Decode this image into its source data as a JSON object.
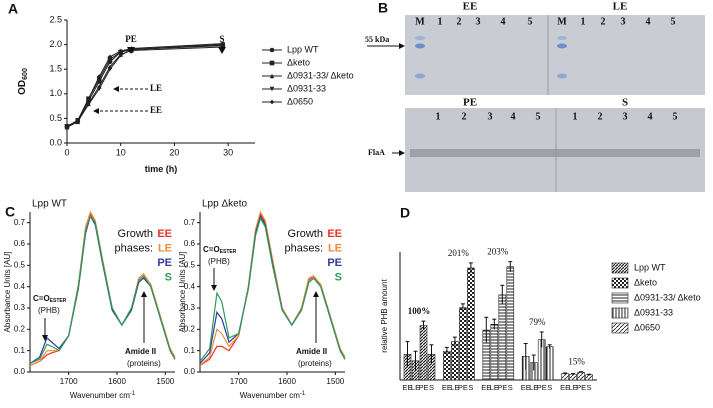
{
  "chart_data": [
    {
      "type": "line",
      "label": "A",
      "xlabel": "time (h)",
      "ylabel": "OD",
      "ylabel_sub": "600",
      "x": [
        0,
        2,
        4,
        6,
        8,
        10,
        12,
        29
      ],
      "series": [
        {
          "name": "Lpp WT",
          "color": "#222222",
          "marker": "circle",
          "values": [
            0.33,
            0.45,
            0.85,
            1.25,
            1.65,
            1.85,
            1.9,
            2.0
          ]
        },
        {
          "name": "Δketo",
          "color": "#222222",
          "marker": "square",
          "values": [
            0.34,
            0.46,
            0.9,
            1.3,
            1.7,
            1.85,
            1.9,
            1.98
          ]
        },
        {
          "name": "Δ0931-33/ Δketo",
          "color": "#222222",
          "marker": "triangle",
          "values": [
            0.32,
            0.43,
            0.8,
            1.15,
            1.55,
            1.8,
            1.88,
            1.95
          ]
        },
        {
          "name": "Δ0931-33",
          "color": "#222222",
          "marker": "triangle-down",
          "values": [
            0.33,
            0.44,
            0.78,
            1.1,
            1.5,
            1.78,
            1.9,
            2.0
          ]
        },
        {
          "name": "Δ0650",
          "color": "#222222",
          "marker": "diamond",
          "values": [
            0.34,
            0.45,
            0.9,
            1.35,
            1.75,
            1.87,
            1.92,
            2.02
          ]
        }
      ],
      "xlim": [
        0,
        35
      ],
      "xticks": [
        0,
        10,
        20,
        30
      ],
      "ylim": [
        0,
        2.5
      ],
      "yticks": [
        {
          "value": 0,
          "label": "0.0"
        },
        0.5,
        {
          "value": 1,
          "label": "1.0"
        },
        1.5,
        {
          "value": 2,
          "label": "2.0"
        },
        2.5
      ],
      "legend": "outside-right",
      "annotations": [
        "PE",
        "S",
        "LE",
        "EE"
      ]
    },
    {
      "type": "line",
      "label": "C",
      "title": "Lpp WT",
      "xlabel": "Wavenumber cm",
      "xlabel_sup": "-1",
      "ylabel": "Absorbance Units [AU]",
      "legend_title": [
        "Growth",
        "phases:"
      ],
      "legend": "top-right",
      "x": [
        1780,
        1760,
        1745,
        1735,
        1720,
        1700,
        1680,
        1665,
        1655,
        1645,
        1630,
        1610,
        1590,
        1570,
        1555,
        1545,
        1530,
        1510,
        1490,
        1480
      ],
      "series": [
        {
          "name": "EE",
          "color": "#e8352b",
          "values": [
            0.03,
            0.05,
            0.08,
            0.09,
            0.1,
            0.17,
            0.4,
            0.67,
            0.74,
            0.7,
            0.52,
            0.3,
            0.22,
            0.3,
            0.43,
            0.45,
            0.4,
            0.25,
            0.1,
            0.06
          ]
        },
        {
          "name": "LE",
          "color": "#f08a3c",
          "values": [
            0.03,
            0.05,
            0.1,
            0.1,
            0.1,
            0.17,
            0.41,
            0.68,
            0.75,
            0.71,
            0.53,
            0.3,
            0.22,
            0.3,
            0.44,
            0.46,
            0.41,
            0.26,
            0.11,
            0.07
          ]
        },
        {
          "name": "PE",
          "color": "#2f3c9e",
          "values": [
            0.04,
            0.07,
            0.16,
            0.14,
            0.11,
            0.17,
            0.39,
            0.65,
            0.73,
            0.69,
            0.51,
            0.29,
            0.22,
            0.29,
            0.42,
            0.44,
            0.4,
            0.25,
            0.1,
            0.06
          ]
        },
        {
          "name": "S",
          "color": "#2a9d5c",
          "values": [
            0.04,
            0.06,
            0.13,
            0.12,
            0.1,
            0.17,
            0.4,
            0.66,
            0.73,
            0.7,
            0.52,
            0.3,
            0.22,
            0.3,
            0.43,
            0.45,
            0.4,
            0.25,
            0.1,
            0.06
          ]
        }
      ],
      "xlim": [
        1780,
        1480
      ],
      "xticks": [
        1700,
        1600,
        1500
      ],
      "ylim": [
        0,
        0.75
      ],
      "yticks": [
        {
          "value": 0,
          "label": "0.0"
        },
        0.1,
        0.2,
        0.3,
        0.4,
        0.5,
        0.6,
        0.7
      ],
      "annotations": [
        {
          "text": "C=O",
          "sub": "ESTER"
        },
        "(PHB)",
        "Amide II",
        "(proteins)"
      ]
    },
    {
      "type": "line",
      "label": "",
      "title": "Lpp Δketo",
      "xlabel": "Wavenumber cm",
      "xlabel_sup": "-1",
      "ylabel": "Absorbance Units [AU]",
      "legend_title": [
        "Growth",
        "phases:"
      ],
      "legend": "top-right",
      "x": [
        1780,
        1760,
        1745,
        1735,
        1720,
        1700,
        1680,
        1665,
        1655,
        1645,
        1630,
        1610,
        1590,
        1570,
        1555,
        1545,
        1530,
        1510,
        1490,
        1480
      ],
      "series": [
        {
          "name": "EE",
          "color": "#e8352b",
          "values": [
            0.03,
            0.06,
            0.12,
            0.12,
            0.1,
            0.17,
            0.4,
            0.66,
            0.74,
            0.7,
            0.52,
            0.3,
            0.22,
            0.3,
            0.43,
            0.45,
            0.4,
            0.25,
            0.1,
            0.06
          ]
        },
        {
          "name": "LE",
          "color": "#f08a3c",
          "values": [
            0.03,
            0.07,
            0.2,
            0.18,
            0.12,
            0.17,
            0.4,
            0.67,
            0.75,
            0.71,
            0.53,
            0.3,
            0.22,
            0.3,
            0.44,
            0.45,
            0.41,
            0.26,
            0.11,
            0.07
          ]
        },
        {
          "name": "PE",
          "color": "#2f3c9e",
          "values": [
            0.04,
            0.09,
            0.28,
            0.25,
            0.14,
            0.18,
            0.39,
            0.65,
            0.73,
            0.69,
            0.51,
            0.29,
            0.22,
            0.29,
            0.42,
            0.44,
            0.4,
            0.25,
            0.1,
            0.06
          ]
        },
        {
          "name": "S",
          "color": "#2a9d5c",
          "values": [
            0.05,
            0.11,
            0.37,
            0.33,
            0.16,
            0.18,
            0.39,
            0.64,
            0.72,
            0.68,
            0.5,
            0.29,
            0.22,
            0.29,
            0.42,
            0.44,
            0.4,
            0.25,
            0.1,
            0.06
          ]
        }
      ],
      "xlim": [
        1780,
        1480
      ],
      "xticks": [
        1700,
        1600,
        1500
      ],
      "ylim": [
        0,
        0.75
      ],
      "yticks": [
        {
          "value": 0,
          "label": "0.0"
        },
        0.1,
        0.2,
        0.3,
        0.4,
        0.5,
        0.6,
        0.7
      ],
      "annotations": [
        {
          "text": "C=O",
          "sub": "ESTER"
        },
        "(PHB)",
        "Amide II",
        "(proteins)"
      ]
    },
    {
      "type": "bar",
      "label": "D",
      "ylabel": "relative PHB amount",
      "legend": "outside-right",
      "categories": [
        "EE",
        "LE",
        "PE",
        "S"
      ],
      "series": [
        {
          "name": "Lpp WT",
          "pattern": "p-dense",
          "label": "100%",
          "values": [
            0.4,
            0.3,
            0.85,
            0.4
          ],
          "errors": [
            0.2,
            0.15,
            0.07,
            0.15
          ]
        },
        {
          "name": "Δketo",
          "pattern": "p-check",
          "label": "201%",
          "values": [
            0.45,
            0.6,
            1.13,
            1.75
          ],
          "errors": [
            0.06,
            0.07,
            0.06,
            0.08
          ]
        },
        {
          "name": "Δ0931-33/ Δketo",
          "pattern": "p-hline",
          "label": "203%",
          "values": [
            0.78,
            0.87,
            1.33,
            1.77
          ],
          "errors": [
            0.2,
            0.08,
            0.15,
            0.08
          ]
        },
        {
          "name": "Δ0931-33",
          "pattern": "p-vline",
          "label": "79%",
          "values": [
            0.37,
            0.27,
            0.63,
            0.52
          ],
          "errors": [
            0.2,
            0.12,
            0.12,
            0.03
          ]
        },
        {
          "name": "Δ0650",
          "pattern": "p-diag",
          "label": "15%",
          "values": [
            0.1,
            0.09,
            0.12,
            0.08
          ],
          "errors": [
            0.01,
            0.01,
            0.01,
            0.01
          ]
        }
      ],
      "ylim": [
        0,
        2.0
      ]
    }
  ],
  "gel": {
    "label": "B",
    "top_left": "EE",
    "top_right": "LE",
    "bottom_left": "PE",
    "bottom_right": "S",
    "lanes_top": [
      "M",
      "1",
      "2",
      "3",
      "4",
      "5",
      "M",
      "1",
      "2",
      "3",
      "4",
      "5"
    ],
    "lanes_bottom": [
      "1",
      "2",
      "3",
      "4",
      "5",
      "1",
      "2",
      "3",
      "4",
      "5"
    ],
    "marker_top": "55 kDa",
    "marker_bottom": "FlaA"
  }
}
